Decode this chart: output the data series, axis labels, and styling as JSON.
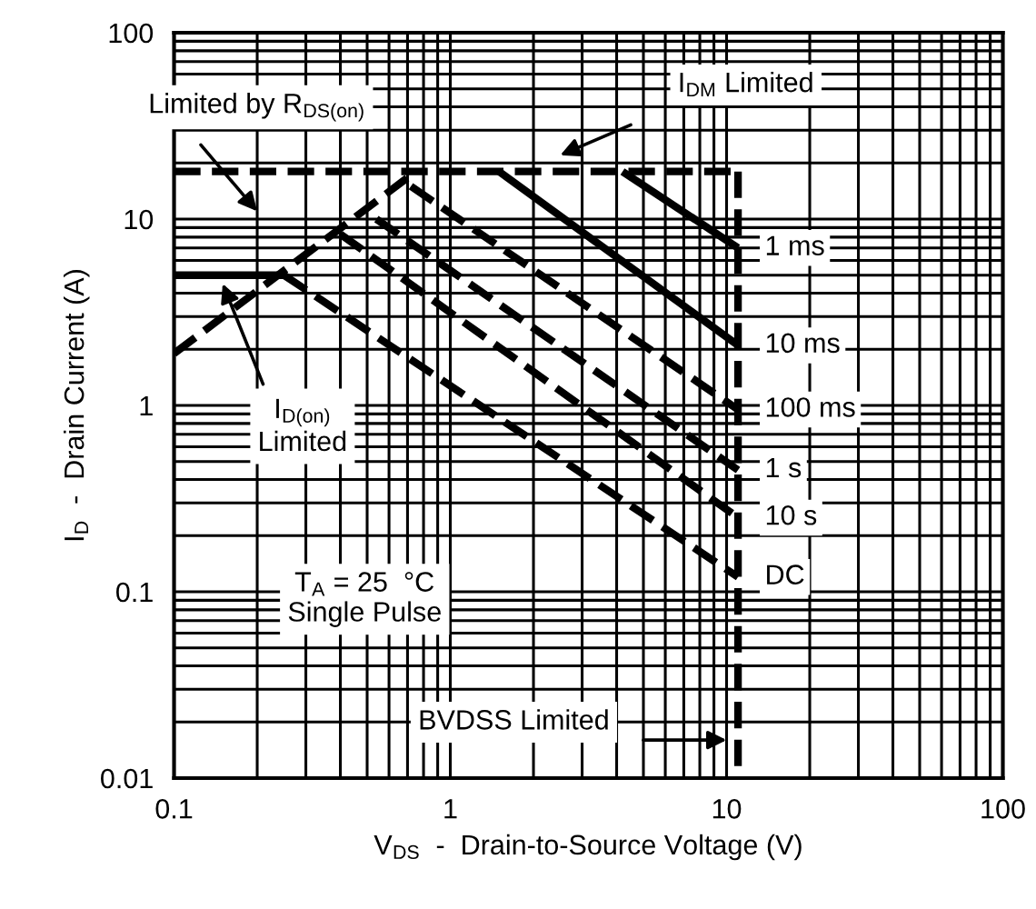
{
  "chart_data": {
    "type": "line",
    "xlabel": "V$_{DS}$  -  Drain-to-Source Voltage (V)",
    "ylabel": "I$_{D}$  -  Drain Current (A)",
    "log": "xy",
    "xlim": [
      0.1,
      100
    ],
    "ylim": [
      0.01,
      100
    ],
    "xticks": [
      0.1,
      1,
      10,
      100
    ],
    "yticks": [
      0.01,
      0.1,
      1,
      10,
      100
    ],
    "grid": true,
    "legend": false,
    "series": [
      {
        "x": [
          0.1,
          0.75
        ],
        "values": [
          1.9,
          18
        ],
        "color": "#000000",
        "line_style": "dashed"
      },
      {
        "x": [
          0.1,
          11
        ],
        "values": [
          18,
          18
        ],
        "color": "#000000",
        "line_style": "dashed"
      },
      {
        "x": [
          11,
          11
        ],
        "values": [
          18,
          0.01
        ],
        "color": "#000000",
        "line_style": "dashed"
      },
      {
        "x": [
          0.1,
          0.25
        ],
        "values": [
          5,
          5
        ],
        "color": "#000000",
        "line_style": "solid"
      },
      {
        "name": "1 ms",
        "x": [
          4.2,
          11
        ],
        "values": [
          18,
          7
        ],
        "color": "#000000",
        "line_style": "solid"
      },
      {
        "name": "10 ms",
        "x": [
          1.5,
          11
        ],
        "values": [
          18,
          2.1
        ],
        "color": "#000000",
        "line_style": "solid"
      },
      {
        "name": "100 ms",
        "x": [
          0.72,
          11
        ],
        "values": [
          15,
          0.95
        ],
        "color": "#000000",
        "line_style": "dashed"
      },
      {
        "name": "1 s",
        "x": [
          0.54,
          11
        ],
        "values": [
          10,
          0.45
        ],
        "color": "#000000",
        "line_style": "dashed"
      },
      {
        "name": "10 s",
        "x": [
          0.4,
          11
        ],
        "values": [
          8.3,
          0.25
        ],
        "color": "#000000",
        "line_style": "dashed"
      },
      {
        "name": "DC",
        "x": [
          0.25,
          11
        ],
        "values": [
          5,
          0.12
        ],
        "color": "#000000",
        "line_style": "dashed"
      }
    ],
    "annotations": [
      "Limited by R$_{DS(on)}$",
      "I$_{DM}$ Limited",
      "I$_{D(on)}$\nLimited",
      "BVDSS Limited",
      "T$_{A}$ = 25  °C\nSingle Pulse"
    ]
  }
}
